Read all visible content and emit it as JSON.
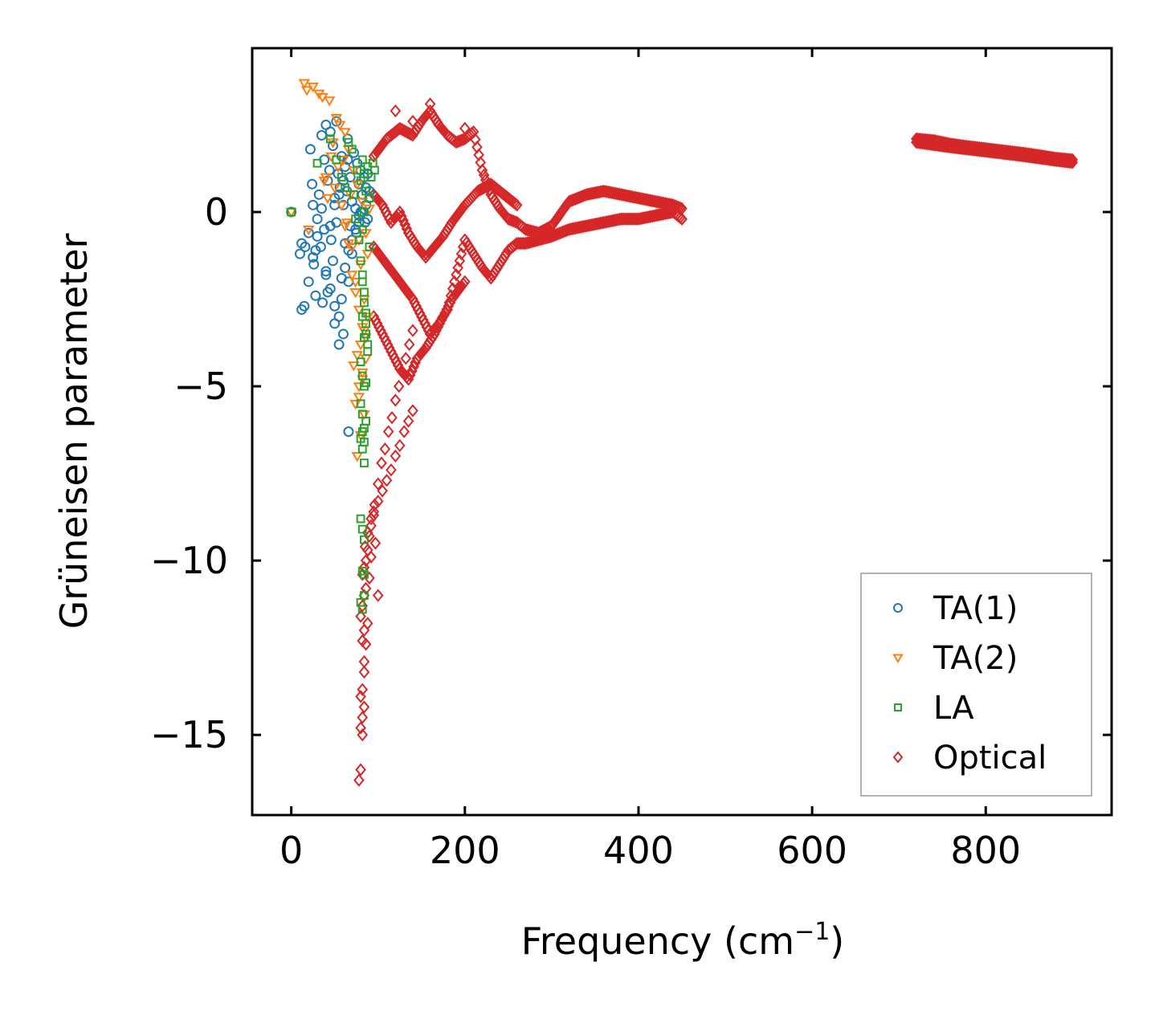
{
  "chart_data": {
    "type": "scatter",
    "title": "",
    "xlabel": "Frequency (cm",
    "xlabel_sup": "−1",
    "xlabel_close": ")",
    "ylabel": "Grüneisen parameter",
    "xlim": [
      -45,
      945
    ],
    "ylim": [
      -17.3,
      4.7
    ],
    "xticks": [
      0,
      200,
      400,
      600,
      800
    ],
    "yticks": [
      0,
      -5,
      -10,
      -15
    ],
    "xtick_labels": [
      "0",
      "200",
      "400",
      "600",
      "800"
    ],
    "ytick_labels": [
      "0",
      "−5",
      "−10",
      "−15"
    ],
    "legend_position": "lower-right",
    "series": [
      {
        "name": "TA(1)",
        "color": "#1f77b4",
        "marker": "circle",
        "x": [
          0,
          10,
          12,
          15,
          20,
          22,
          24,
          25,
          26,
          28,
          30,
          32,
          34,
          35,
          36,
          38,
          38,
          40,
          40,
          42,
          42,
          44,
          45,
          46,
          48,
          48,
          50,
          50,
          52,
          52,
          54,
          55,
          56,
          58,
          58,
          60,
          60,
          62,
          62,
          64,
          65,
          66,
          68,
          68,
          70,
          70,
          72,
          74,
          75,
          76,
          78,
          78,
          80,
          80,
          82,
          84,
          85,
          86,
          88,
          88,
          90,
          45,
          50,
          55,
          60,
          65,
          35,
          30,
          28,
          25,
          20,
          16,
          12,
          40,
          45,
          50,
          55,
          58,
          62,
          66,
          70,
          74,
          78,
          82,
          86,
          90,
          66
        ],
        "y": [
          0,
          -1.2,
          -0.9,
          -2.7,
          -0.6,
          1.8,
          0.8,
          0.2,
          -1.5,
          -2.4,
          -0.2,
          0.5,
          -1.0,
          2.2,
          -2.6,
          1.5,
          -0.5,
          2.5,
          -1.8,
          0.9,
          -2.3,
          1.2,
          2.3,
          -0.8,
          1.9,
          -1.4,
          0.4,
          -2.7,
          2.6,
          -0.3,
          1.1,
          -3.0,
          0.7,
          -1.9,
          1.6,
          0.2,
          -3.5,
          1.3,
          -0.9,
          0.6,
          2.1,
          -2.0,
          1.0,
          -0.4,
          0.3,
          -1.2,
          1.7,
          0.1,
          -0.6,
          1.4,
          0.8,
          -0.1,
          1.2,
          0.0,
          0.5,
          1.0,
          -0.3,
          0.7,
          1.1,
          -0.2,
          0.4,
          -0.4,
          0.2,
          0.5,
          0.9,
          1.5,
          0.1,
          -0.7,
          -1.1,
          -1.3,
          -2.0,
          -1.0,
          -2.8,
          -1.7,
          -2.2,
          -3.2,
          -3.8,
          -2.5,
          -1.6,
          -1.1,
          -0.8,
          -0.5,
          -0.3,
          0.0,
          0.2,
          0.6,
          -6.3
        ]
      },
      {
        "name": "TA(2)",
        "color": "#ff7f0e",
        "marker": "triangle-down",
        "x": [
          0,
          15,
          18,
          20,
          25,
          32,
          36,
          40,
          44,
          48,
          52,
          56,
          60,
          62,
          64,
          66,
          68,
          70,
          72,
          74,
          76,
          78,
          80,
          82,
          84,
          86,
          88,
          90,
          38,
          42,
          46,
          50,
          54,
          58,
          62,
          66,
          70,
          74,
          78,
          82,
          86,
          72,
          76,
          80,
          84,
          88,
          74,
          78,
          82,
          86,
          76,
          80,
          84,
          78,
          82
        ],
        "y": [
          0,
          3.7,
          3.5,
          -0.5,
          3.6,
          3.4,
          3.3,
          1.0,
          3.2,
          2.0,
          2.7,
          2.5,
          1.5,
          2.3,
          -0.3,
          1.8,
          0.5,
          -1.0,
          1.2,
          -2.0,
          0.8,
          -0.8,
          -1.5,
          0.3,
          -2.5,
          -0.6,
          -1.2,
          0.1,
          0.9,
          0.4,
          1.6,
          0.7,
          1.3,
          0.2,
          -0.4,
          -0.9,
          -1.8,
          -2.3,
          -2.8,
          -3.3,
          -3.6,
          -4.4,
          -4.1,
          -3.8,
          -3.4,
          -3.0,
          -5.5,
          -5.0,
          -4.6,
          -4.2,
          -7.0,
          -6.4,
          -5.8,
          -5.3,
          -4.8
        ]
      },
      {
        "name": "LA",
        "color": "#2ca02c",
        "marker": "square",
        "x": [
          0,
          30,
          45,
          52,
          58,
          62,
          66,
          70,
          72,
          74,
          76,
          78,
          80,
          80,
          82,
          82,
          84,
          84,
          86,
          86,
          88,
          88,
          90,
          90,
          92,
          94,
          96,
          80,
          82,
          84,
          86,
          80,
          82,
          84,
          86,
          80,
          82,
          84,
          80,
          82,
          84,
          82,
          84,
          80,
          82,
          84,
          86,
          88,
          82,
          84,
          86,
          82,
          84,
          82,
          84,
          82,
          84
        ],
        "y": [
          0,
          1.4,
          2.1,
          1.5,
          1.0,
          0.7,
          2.0,
          1.8,
          0.5,
          -0.2,
          1.2,
          -0.8,
          0.9,
          -1.4,
          1.5,
          -2.0,
          1.1,
          -2.6,
          0.6,
          -3.2,
          1.3,
          -3.8,
          0.4,
          -1.0,
          1.0,
          1.4,
          1.2,
          -4.3,
          -4.7,
          -5.0,
          -4.9,
          -5.5,
          -5.8,
          -6.2,
          -6.0,
          -6.5,
          -6.8,
          -7.2,
          -8.8,
          -9.1,
          -9.4,
          -10.3,
          -10.4,
          -11.2,
          -11.4,
          -11.0,
          -3.5,
          -4.0,
          -1.8,
          -2.3,
          -2.9,
          -0.5,
          0.0,
          -3.0,
          -3.6,
          -6.3,
          -6.6
        ]
      },
      {
        "name": "Optical",
        "color": "#d62728",
        "marker": "diamond",
        "curve_branches": [
          {
            "x": [
              95,
              110,
              125,
              140,
              150,
              160,
              170,
              180,
              190,
              200,
              210,
              220,
              230,
              240,
              250,
              260,
              270,
              285,
              300,
              320,
              340,
              360,
              380,
              400,
              420,
              440,
              450
            ],
            "y": [
              1.6,
              2.1,
              2.4,
              2.2,
              2.6,
              2.9,
              2.5,
              2.2,
              2.0,
              2.1,
              2.3,
              1.2,
              0.5,
              0.1,
              -0.2,
              -0.3,
              -0.5,
              -0.6,
              -0.4,
              0.3,
              0.5,
              0.6,
              0.5,
              0.4,
              0.3,
              0.2,
              0.1
            ]
          },
          {
            "x": [
              95,
              110,
              125,
              140,
              150,
              160,
              170,
              180,
              190,
              200,
              210,
              220,
              230,
              240,
              250,
              260,
              270,
              285,
              300,
              320,
              340,
              360,
              380,
              400,
              420,
              440,
              450
            ],
            "y": [
              -1.0,
              -1.5,
              -2.0,
              -2.5,
              -3.0,
              -3.5,
              -3.2,
              -2.8,
              -1.8,
              -0.8,
              -1.2,
              -1.6,
              -1.9,
              -1.5,
              -1.1,
              -0.9,
              -0.9,
              -0.8,
              -0.7,
              -0.5,
              -0.4,
              -0.3,
              -0.2,
              -0.2,
              -0.1,
              0.0,
              -0.2
            ]
          },
          {
            "x": [
              95,
              105,
              115,
              125,
              135,
              145,
              155,
              165,
              175,
              185,
              200,
              215,
              230,
              245,
              260
            ],
            "y": [
              0.5,
              0.2,
              -0.3,
              0.0,
              -0.6,
              -1.0,
              -1.3,
              -1.0,
              -0.7,
              -0.3,
              0.2,
              0.6,
              0.8,
              0.5,
              0.2
            ]
          },
          {
            "x": [
              95,
              105,
              115,
              125,
              135,
              145,
              155,
              165,
              175,
              185,
              200
            ],
            "y": [
              -3.0,
              -3.5,
              -4.0,
              -4.5,
              -4.8,
              -4.2,
              -3.9,
              -3.5,
              -3.0,
              -2.5,
              -2.0
            ]
          },
          {
            "x": [
              720,
              740,
              760,
              780,
              800,
              820,
              840,
              860,
              880,
              900
            ],
            "y": [
              2.1,
              2.05,
              1.95,
              1.88,
              1.82,
              1.76,
              1.7,
              1.63,
              1.55,
              1.5
            ]
          },
          {
            "x": [
              720,
              740,
              760,
              780,
              800,
              820,
              840,
              860,
              880,
              900
            ],
            "y": [
              2.0,
              1.93,
              1.86,
              1.8,
              1.74,
              1.68,
              1.62,
              1.55,
              1.48,
              1.42
            ]
          }
        ],
        "x": [
          78,
          80,
          82,
          80,
          82,
          84,
          80,
          82,
          84,
          82,
          84,
          80,
          82,
          84,
          86,
          82,
          84,
          86,
          88,
          90,
          92,
          95,
          100,
          105,
          110,
          115,
          120,
          125,
          130,
          135,
          140,
          85,
          88,
          92,
          96,
          100,
          104,
          108,
          112,
          116,
          120,
          124,
          128,
          132,
          136,
          140,
          100,
          120,
          140,
          160,
          200,
          450,
          97,
          95,
          92,
          90,
          88,
          86,
          84
        ],
        "y": [
          -16.3,
          -16.0,
          -15.0,
          -14.8,
          -14.5,
          -14.2,
          -13.9,
          -13.7,
          -12.9,
          -12.3,
          -12.0,
          -11.6,
          -11.3,
          -11.0,
          -10.8,
          -10.4,
          -10.2,
          -10.0,
          -9.7,
          -9.3,
          -9.0,
          -8.7,
          -8.3,
          -8.0,
          -7.7,
          -7.4,
          -7.0,
          -6.7,
          -6.3,
          -6.0,
          -5.7,
          -9.6,
          -9.2,
          -8.8,
          -8.4,
          -7.8,
          -7.2,
          -6.8,
          -6.3,
          -5.9,
          -5.4,
          -5.0,
          -4.6,
          -4.2,
          -3.8,
          -3.4,
          -11.0,
          2.9,
          2.6,
          3.1,
          2.4,
          -0.2,
          -9.5,
          -8.6,
          -9.9,
          -10.5,
          -11.8,
          -12.4,
          -13.2
        ]
      }
    ]
  }
}
